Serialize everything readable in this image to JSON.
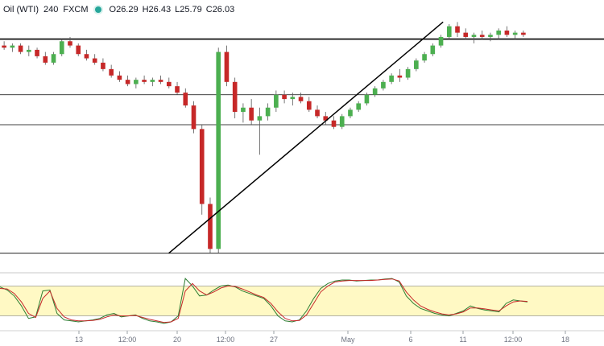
{
  "legend": {
    "symbol": "Oil (WTI)",
    "timeframe": "240",
    "exchange": "FXCM",
    "open": "O26.29",
    "high": "H26.43",
    "low": "L25.79",
    "close": "C26.03"
  },
  "colors": {
    "up": "#26a69a",
    "down": "#ef5350",
    "candle_up_body": "#4caf50",
    "candle_down_body": "#c62828",
    "stoch_k": "#2e7d32",
    "stoch_d": "#c62828",
    "stoch_band": "#fff9c4",
    "line": "#000000"
  },
  "chart_data": [
    {
      "type": "candlestick",
      "x_tick_labels": [
        "13",
        "12:00",
        "20",
        "12:00",
        "27",
        "May",
        "6",
        "11",
        "12:00",
        "18"
      ],
      "horizontal_levels": [
        26.2,
        23.6,
        22.2,
        16.2
      ],
      "trendline": {
        "from": [
          0.32,
          16.2
        ],
        "to": [
          0.84,
          27.0
        ]
      },
      "ylim": [
        16.0,
        27.2
      ],
      "series": [
        {
          "values": [
            [
              25.9,
              26.1,
              25.7,
              25.8
            ],
            [
              25.8,
              26.0,
              25.6,
              25.9
            ],
            [
              25.9,
              26.0,
              25.5,
              25.6
            ],
            [
              25.6,
              25.9,
              25.4,
              25.7
            ],
            [
              25.7,
              25.8,
              25.3,
              25.4
            ],
            [
              25.4,
              25.6,
              25.0,
              25.1
            ],
            [
              25.1,
              25.6,
              25.0,
              25.5
            ],
            [
              25.5,
              26.2,
              25.4,
              26.1
            ],
            [
              26.1,
              26.3,
              25.8,
              25.9
            ],
            [
              25.9,
              26.0,
              25.4,
              25.5
            ],
            [
              25.5,
              25.7,
              25.2,
              25.3
            ],
            [
              25.3,
              25.5,
              25.0,
              25.1
            ],
            [
              25.1,
              25.3,
              24.7,
              24.8
            ],
            [
              24.8,
              25.0,
              24.4,
              24.5
            ],
            [
              24.5,
              24.7,
              24.2,
              24.3
            ],
            [
              24.3,
              24.5,
              24.0,
              24.1
            ],
            [
              24.1,
              24.4,
              23.9,
              24.3
            ],
            [
              24.3,
              24.5,
              24.1,
              24.2
            ],
            [
              24.2,
              24.4,
              24.0,
              24.3
            ],
            [
              24.3,
              24.5,
              24.1,
              24.2
            ],
            [
              24.2,
              24.4,
              23.9,
              24.0
            ],
            [
              24.0,
              24.2,
              23.6,
              23.7
            ],
            [
              23.7,
              23.9,
              23.0,
              23.1
            ],
            [
              23.1,
              23.3,
              21.8,
              22.0
            ],
            [
              22.0,
              22.2,
              18.0,
              18.5
            ],
            [
              18.5,
              18.8,
              16.2,
              16.4
            ],
            [
              16.4,
              25.8,
              16.2,
              25.6
            ],
            [
              25.6,
              25.9,
              24.0,
              24.2
            ],
            [
              24.2,
              24.4,
              22.5,
              22.8
            ],
            [
              22.8,
              23.2,
              22.3,
              23.0
            ],
            [
              23.0,
              23.4,
              22.2,
              22.4
            ],
            [
              22.4,
              23.0,
              20.8,
              22.6
            ],
            [
              22.6,
              23.2,
              22.4,
              23.0
            ],
            [
              23.0,
              23.8,
              22.8,
              23.6
            ],
            [
              23.6,
              23.8,
              23.2,
              23.4
            ],
            [
              23.4,
              23.7,
              23.1,
              23.5
            ],
            [
              23.5,
              23.7,
              23.2,
              23.3
            ],
            [
              23.3,
              23.5,
              22.8,
              22.9
            ],
            [
              22.9,
              23.1,
              22.5,
              22.6
            ],
            [
              22.6,
              22.8,
              22.2,
              22.4
            ],
            [
              22.4,
              22.6,
              22.0,
              22.1
            ],
            [
              22.1,
              22.7,
              22.0,
              22.6
            ],
            [
              22.6,
              23.0,
              22.5,
              22.9
            ],
            [
              22.9,
              23.3,
              22.8,
              23.2
            ],
            [
              23.2,
              23.7,
              23.1,
              23.6
            ],
            [
              23.6,
              24.0,
              23.5,
              23.9
            ],
            [
              23.9,
              24.3,
              23.8,
              24.2
            ],
            [
              24.2,
              24.6,
              24.1,
              24.5
            ],
            [
              24.5,
              24.8,
              24.2,
              24.4
            ],
            [
              24.4,
              24.9,
              24.3,
              24.8
            ],
            [
              24.8,
              25.3,
              24.7,
              25.2
            ],
            [
              25.2,
              25.6,
              25.1,
              25.5
            ],
            [
              25.5,
              26.0,
              25.4,
              25.9
            ],
            [
              25.9,
              26.4,
              25.8,
              26.3
            ],
            [
              26.3,
              26.9,
              26.2,
              26.8
            ],
            [
              26.8,
              27.0,
              26.3,
              26.5
            ],
            [
              26.5,
              26.7,
              26.2,
              26.3
            ],
            [
              26.3,
              26.5,
              26.0,
              26.4
            ],
            [
              26.4,
              26.6,
              26.2,
              26.3
            ],
            [
              26.3,
              26.5,
              26.1,
              26.4
            ],
            [
              26.4,
              26.7,
              26.2,
              26.6
            ],
            [
              26.6,
              26.8,
              26.3,
              26.4
            ],
            [
              26.4,
              26.6,
              26.2,
              26.5
            ],
            [
              26.5,
              26.6,
              26.3,
              26.4
            ]
          ]
        }
      ]
    },
    {
      "type": "line",
      "x_tick_labels": [
        "13",
        "12:00",
        "20",
        "12:00",
        "27",
        "May",
        "6",
        "11",
        "12:00",
        "18"
      ],
      "band": [
        20,
        80
      ],
      "ylim": [
        0,
        100
      ],
      "series": [
        {
          "values": [
            78,
            72,
            60,
            40,
            15,
            18,
            70,
            72,
            25,
            12,
            10,
            8,
            10,
            12,
            15,
            22,
            25,
            18,
            20,
            22,
            15,
            10,
            8,
            5,
            8,
            20,
            95,
            80,
            60,
            62,
            72,
            80,
            82,
            78,
            70,
            65,
            60,
            55,
            40,
            20,
            10,
            8,
            12,
            30,
            55,
            75,
            85,
            90,
            92,
            92,
            90,
            91,
            92,
            92,
            94,
            95,
            88,
            60,
            45,
            35,
            30,
            25,
            22,
            20,
            25,
            30,
            40,
            35,
            32,
            30,
            28,
            45,
            52,
            50,
            48
          ]
        },
        {
          "values": [
            75,
            74,
            65,
            48,
            25,
            17,
            55,
            70,
            35,
            18,
            12,
            10,
            10,
            11,
            13,
            18,
            22,
            20,
            20,
            21,
            17,
            13,
            10,
            7,
            8,
            15,
            70,
            85,
            70,
            62,
            68,
            76,
            80,
            79,
            74,
            68,
            62,
            57,
            45,
            28,
            15,
            10,
            11,
            22,
            45,
            68,
            80,
            88,
            90,
            91,
            91,
            91,
            91,
            92,
            93,
            94,
            90,
            68,
            52,
            40,
            33,
            28,
            24,
            22,
            24,
            28,
            36,
            36,
            34,
            32,
            30,
            40,
            48,
            50,
            49
          ]
        }
      ]
    }
  ]
}
